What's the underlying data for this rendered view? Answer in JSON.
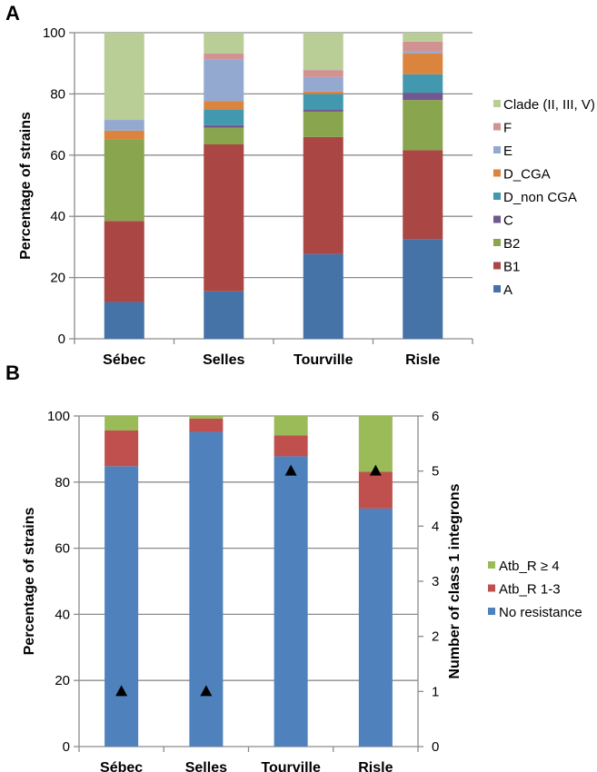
{
  "chart_data": [
    {
      "panel": "A",
      "type": "bar",
      "stacked": true,
      "title": "",
      "xlabel": "",
      "ylabel": "Percentage of strains",
      "ylim": [
        0,
        100
      ],
      "yticks": [
        0,
        20,
        40,
        60,
        80,
        100
      ],
      "grid": true,
      "legend_position": "right",
      "categories": [
        "Sébec",
        "Selles",
        "Tourville",
        "Risle"
      ],
      "series": [
        {
          "name": "A",
          "color": "#4572A7",
          "values": [
            12.0,
            15.5,
            27.7,
            32.6
          ]
        },
        {
          "name": "B1",
          "color": "#AA4643",
          "values": [
            26.5,
            48.0,
            38.2,
            29.0
          ]
        },
        {
          "name": "B2",
          "color": "#89A54E",
          "values": [
            26.5,
            5.5,
            8.3,
            16.4
          ]
        },
        {
          "name": "C",
          "color": "#71588F",
          "values": [
            0.0,
            0.8,
            0.8,
            2.4
          ]
        },
        {
          "name": "D_non CGA",
          "color": "#4198AF",
          "values": [
            0.0,
            5.2,
            5.0,
            6.0
          ]
        },
        {
          "name": "D_CGA",
          "color": "#DB843D",
          "values": [
            3.0,
            2.7,
            0.8,
            6.8
          ]
        },
        {
          "name": "E",
          "color": "#93A9CF",
          "values": [
            3.5,
            13.5,
            4.7,
            0.6
          ]
        },
        {
          "name": "F",
          "color": "#D19392",
          "values": [
            0.0,
            2.0,
            2.3,
            3.3
          ]
        },
        {
          "name": "Clade (II, III, V)",
          "color": "#B9CD96",
          "values": [
            28.5,
            6.8,
            12.2,
            2.9
          ]
        }
      ]
    },
    {
      "panel": "B",
      "type": "bar",
      "stacked": true,
      "title": "",
      "xlabel": "",
      "ylabel": "Percentage of strains",
      "y2label": "Number of class 1 integrons",
      "ylim": [
        0,
        100
      ],
      "y2lim": [
        0,
        6
      ],
      "yticks": [
        0,
        20,
        40,
        60,
        80,
        100
      ],
      "y2ticks": [
        0,
        1,
        2,
        3,
        4,
        5,
        6
      ],
      "grid": true,
      "legend_position": "right",
      "categories": [
        "Sébec",
        "Selles",
        "Tourville",
        "Risle"
      ],
      "series": [
        {
          "name": "No resistance",
          "color": "#4F81BD",
          "values": [
            84.8,
            95.2,
            87.8,
            72.0
          ]
        },
        {
          "name": "Atb_R 1-3",
          "color": "#C0504D",
          "values": [
            10.8,
            4.0,
            6.3,
            11.1
          ]
        },
        {
          "name": "Atb_R ≥ 4",
          "color": "#9BBB59",
          "values": [
            4.4,
            0.8,
            5.9,
            16.9
          ]
        }
      ],
      "markers": {
        "name": "Class 1 integrons",
        "axis": "y2",
        "symbol": "triangle",
        "color": "#000000",
        "values": [
          1,
          1,
          5,
          5
        ]
      }
    }
  ],
  "labels": {
    "panelA": "A",
    "panelB": "B"
  }
}
